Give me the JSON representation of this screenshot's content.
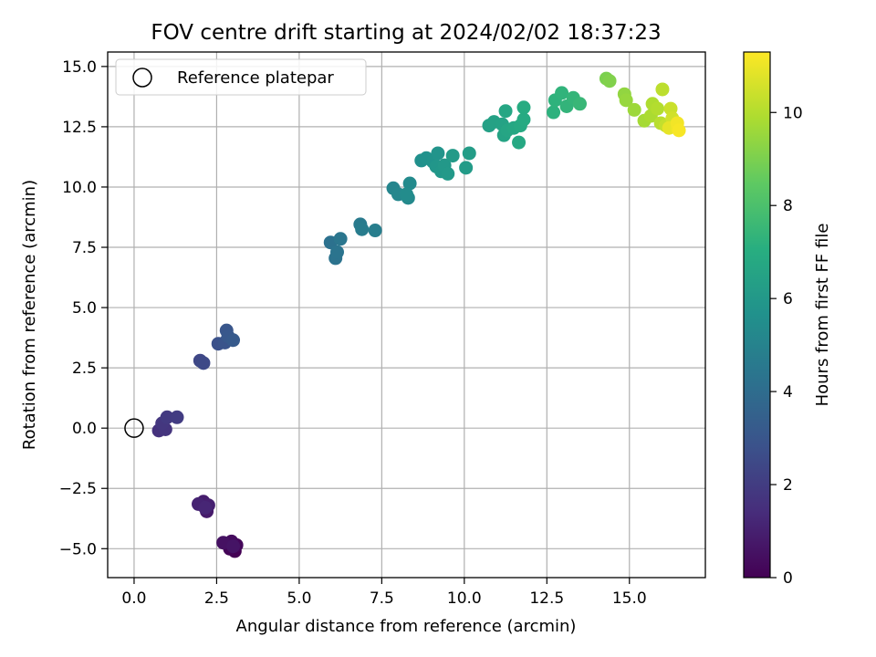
{
  "chart_data": {
    "type": "scatter",
    "title": "FOV centre drift starting at 2024/02/02 18:37:23",
    "xlabel": "Angular distance from reference (arcmin)",
    "ylabel": "Rotation from reference (arcmin)",
    "xlim": [
      -0.8,
      17.3
    ],
    "ylim": [
      -6.2,
      15.6
    ],
    "xticks": [
      0.0,
      2.5,
      5.0,
      7.5,
      10.0,
      12.5,
      15.0
    ],
    "xtick_labels": [
      "0.0",
      "2.5",
      "5.0",
      "7.5",
      "10.0",
      "12.5",
      "15.0"
    ],
    "yticks": [
      -5.0,
      -2.5,
      0.0,
      2.5,
      5.0,
      7.5,
      10.0,
      12.5,
      15.0
    ],
    "ytick_labels": [
      "−5.0",
      "−2.5",
      "0.0",
      "2.5",
      "5.0",
      "7.5",
      "10.0",
      "12.5",
      "15.0"
    ],
    "grid": true,
    "legend": {
      "position": "top-left",
      "label": "Reference platepar"
    },
    "reference_point": {
      "x": 0.0,
      "y": 0.0
    },
    "colorbar": {
      "label": "Hours from first FF file",
      "colormap": "viridis",
      "range": [
        0,
        11.3
      ],
      "ticks": [
        0,
        2,
        4,
        6,
        8,
        10
      ],
      "tick_labels": [
        "0",
        "2",
        "4",
        "6",
        "8",
        "10"
      ]
    },
    "points": [
      {
        "x": 3.05,
        "y": -5.1,
        "h": 0.0
      },
      {
        "x": 2.9,
        "y": -5.0,
        "h": 0.1
      },
      {
        "x": 3.1,
        "y": -4.85,
        "h": 0.2
      },
      {
        "x": 2.95,
        "y": -4.7,
        "h": 0.35
      },
      {
        "x": 2.7,
        "y": -4.75,
        "h": 0.5
      },
      {
        "x": 3.0,
        "y": -4.9,
        "h": 0.6
      },
      {
        "x": 2.2,
        "y": -3.45,
        "h": 0.8
      },
      {
        "x": 2.1,
        "y": -3.05,
        "h": 0.9
      },
      {
        "x": 2.25,
        "y": -3.2,
        "h": 1.0
      },
      {
        "x": 1.95,
        "y": -3.15,
        "h": 1.1
      },
      {
        "x": 2.15,
        "y": -3.3,
        "h": 1.2
      },
      {
        "x": 0.75,
        "y": -0.1,
        "h": 1.6
      },
      {
        "x": 0.95,
        "y": -0.05,
        "h": 1.7
      },
      {
        "x": 0.85,
        "y": 0.2,
        "h": 1.8
      },
      {
        "x": 1.0,
        "y": 0.45,
        "h": 1.9
      },
      {
        "x": 1.3,
        "y": 0.45,
        "h": 2.0
      },
      {
        "x": 2.0,
        "y": 2.8,
        "h": 2.4
      },
      {
        "x": 2.1,
        "y": 2.7,
        "h": 2.5
      },
      {
        "x": 2.55,
        "y": 3.5,
        "h": 2.8
      },
      {
        "x": 2.75,
        "y": 3.55,
        "h": 2.9
      },
      {
        "x": 2.8,
        "y": 4.05,
        "h": 3.0
      },
      {
        "x": 2.85,
        "y": 3.8,
        "h": 3.1
      },
      {
        "x": 3.0,
        "y": 3.65,
        "h": 3.2
      },
      {
        "x": 5.95,
        "y": 7.7,
        "h": 4.2
      },
      {
        "x": 6.1,
        "y": 7.05,
        "h": 4.3
      },
      {
        "x": 6.15,
        "y": 7.3,
        "h": 4.35
      },
      {
        "x": 6.25,
        "y": 7.85,
        "h": 4.4
      },
      {
        "x": 6.85,
        "y": 8.45,
        "h": 4.6
      },
      {
        "x": 6.9,
        "y": 8.25,
        "h": 4.7
      },
      {
        "x": 7.3,
        "y": 8.2,
        "h": 4.8
      },
      {
        "x": 7.85,
        "y": 9.95,
        "h": 5.1
      },
      {
        "x": 8.0,
        "y": 9.7,
        "h": 5.2
      },
      {
        "x": 8.3,
        "y": 9.55,
        "h": 5.3
      },
      {
        "x": 8.35,
        "y": 10.15,
        "h": 5.35
      },
      {
        "x": 8.25,
        "y": 9.7,
        "h": 5.4
      },
      {
        "x": 8.7,
        "y": 11.1,
        "h": 5.6
      },
      {
        "x": 8.85,
        "y": 11.2,
        "h": 5.7
      },
      {
        "x": 9.05,
        "y": 11.05,
        "h": 5.75
      },
      {
        "x": 9.2,
        "y": 11.4,
        "h": 5.8
      },
      {
        "x": 9.15,
        "y": 10.85,
        "h": 5.9
      },
      {
        "x": 9.3,
        "y": 10.65,
        "h": 5.95
      },
      {
        "x": 9.4,
        "y": 10.9,
        "h": 6.0
      },
      {
        "x": 9.5,
        "y": 10.55,
        "h": 6.05
      },
      {
        "x": 9.65,
        "y": 11.3,
        "h": 6.1
      },
      {
        "x": 10.05,
        "y": 10.8,
        "h": 6.15
      },
      {
        "x": 10.15,
        "y": 11.4,
        "h": 6.2
      },
      {
        "x": 10.75,
        "y": 12.55,
        "h": 6.4
      },
      {
        "x": 10.9,
        "y": 12.7,
        "h": 6.45
      },
      {
        "x": 11.15,
        "y": 12.6,
        "h": 6.5
      },
      {
        "x": 11.2,
        "y": 12.15,
        "h": 6.55
      },
      {
        "x": 11.3,
        "y": 12.35,
        "h": 6.6
      },
      {
        "x": 11.25,
        "y": 13.15,
        "h": 6.65
      },
      {
        "x": 11.5,
        "y": 12.45,
        "h": 6.7
      },
      {
        "x": 11.65,
        "y": 11.85,
        "h": 6.75
      },
      {
        "x": 11.7,
        "y": 12.55,
        "h": 6.8
      },
      {
        "x": 11.8,
        "y": 12.8,
        "h": 6.85
      },
      {
        "x": 11.8,
        "y": 13.3,
        "h": 6.9
      },
      {
        "x": 12.7,
        "y": 13.1,
        "h": 7.2
      },
      {
        "x": 12.75,
        "y": 13.6,
        "h": 7.25
      },
      {
        "x": 12.95,
        "y": 13.9,
        "h": 7.3
      },
      {
        "x": 13.1,
        "y": 13.35,
        "h": 7.35
      },
      {
        "x": 13.3,
        "y": 13.7,
        "h": 7.4
      },
      {
        "x": 13.5,
        "y": 13.45,
        "h": 7.5
      },
      {
        "x": 14.3,
        "y": 14.5,
        "h": 9.0
      },
      {
        "x": 14.4,
        "y": 14.4,
        "h": 9.1
      },
      {
        "x": 14.85,
        "y": 13.85,
        "h": 9.4
      },
      {
        "x": 14.9,
        "y": 13.6,
        "h": 9.5
      },
      {
        "x": 15.15,
        "y": 13.2,
        "h": 9.6
      },
      {
        "x": 15.45,
        "y": 12.75,
        "h": 9.75
      },
      {
        "x": 15.65,
        "y": 12.95,
        "h": 9.85
      },
      {
        "x": 15.7,
        "y": 13.45,
        "h": 9.9
      },
      {
        "x": 15.85,
        "y": 13.25,
        "h": 10.0
      },
      {
        "x": 15.95,
        "y": 12.65,
        "h": 10.1
      },
      {
        "x": 16.0,
        "y": 14.05,
        "h": 10.15
      },
      {
        "x": 16.1,
        "y": 12.55,
        "h": 10.3
      },
      {
        "x": 16.25,
        "y": 13.25,
        "h": 10.4
      },
      {
        "x": 16.3,
        "y": 12.85,
        "h": 10.5
      },
      {
        "x": 16.2,
        "y": 12.45,
        "h": 10.9
      },
      {
        "x": 16.45,
        "y": 12.45,
        "h": 11.0
      },
      {
        "x": 16.45,
        "y": 12.65,
        "h": 11.1
      },
      {
        "x": 16.5,
        "y": 12.35,
        "h": 11.2
      }
    ]
  }
}
